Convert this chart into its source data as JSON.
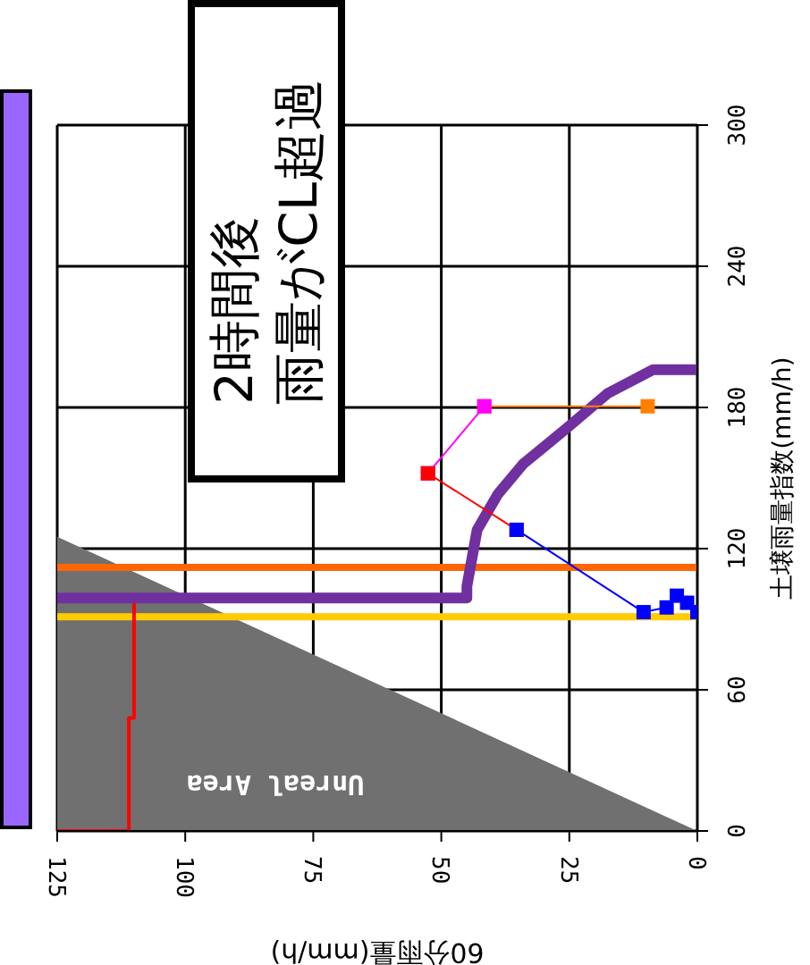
{
  "chart_data": {
    "type": "line",
    "xlabel": "60分雨量(mm/h)",
    "ylabel": "土壌雨量指数(mm/h)",
    "xlim": [
      125,
      0
    ],
    "xticks": [
      125,
      100,
      75,
      50,
      25,
      0
    ],
    "ylim": [
      0,
      300
    ],
    "yticks": [
      0,
      60,
      120,
      180,
      240,
      300
    ],
    "grid": true,
    "legend": false,
    "annotations": [
      "2時間後",
      "雨量がCL超過",
      "Unreal Area"
    ],
    "ref_lines": [
      {
        "axis": "y",
        "value": 112,
        "color": "#ff6600"
      },
      {
        "axis": "y",
        "value": 91,
        "color": "#ffcc00"
      }
    ],
    "series": [
      {
        "type": "area",
        "color": "#707070",
        "x": [
          0,
          125
        ],
        "values": [
          0,
          125
        ]
      },
      {
        "color": "#ff0000",
        "x": [
          125,
          111,
          111,
          110,
          110
        ],
        "values": [
          0,
          0,
          48,
          48,
          97
        ],
        "marker": "none"
      },
      {
        "color": "#7030a0",
        "x": [
          125,
          45,
          45,
          43,
          39,
          34,
          25.6,
          17.5,
          8.7,
          0
        ],
        "values": [
          99,
          99,
          104,
          128,
          143,
          156,
          171,
          186,
          196,
          196
        ],
        "marker": "none"
      },
      {
        "color": "#ff8000",
        "x": [
          41.6,
          9.7
        ],
        "values": [
          180.5,
          180.5
        ],
        "marker": "square"
      },
      {
        "color": "#ff00ff",
        "x": [
          52.6,
          41.6
        ],
        "values": [
          152,
          180.5
        ],
        "marker": "square"
      },
      {
        "color": "#ff0000",
        "x": [
          35.3,
          52.6
        ],
        "values": [
          128,
          152
        ],
        "marker": "square"
      },
      {
        "color": "#0000ff",
        "x": [
          0,
          2,
          4,
          6,
          10.5,
          35.3
        ],
        "values": [
          93,
          97,
          100,
          95,
          93,
          128
        ],
        "marker": "square"
      }
    ]
  }
}
